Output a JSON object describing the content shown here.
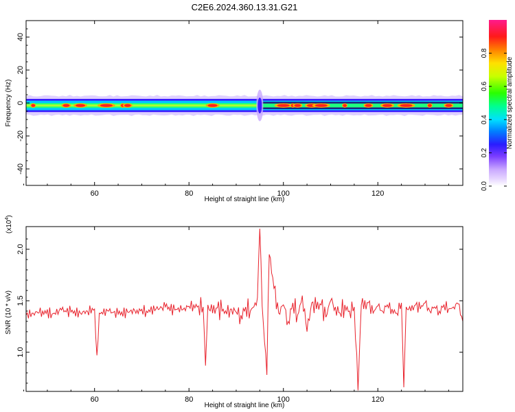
{
  "title": "C2E6.2024.360.13.31.G21",
  "colors": {
    "signal_line": "#e8202a",
    "axis": "#000000",
    "background": "#ffffff"
  },
  "chart_data": [
    {
      "type": "heatmap",
      "description_of_marks": "Spectrogram of a narrow band centered on 0 Hz versus height",
      "xlabel": "Height of straight line (km)",
      "ylabel": "Frequency (Hz)",
      "xlim": [
        45.5,
        138
      ],
      "ylim": [
        -50,
        50
      ],
      "xticks": [
        60,
        80,
        100,
        120
      ],
      "yticks": [
        -40,
        -20,
        0,
        20,
        40
      ],
      "colorbar": {
        "label": "Normalized spectral amplitude",
        "range": [
          0,
          1
        ],
        "ticks": [
          "0.0",
          "0.2",
          "0.4",
          "0.6",
          "0.8"
        ],
        "colormap": "rainbow"
      },
      "band": {
        "center_hz": -1.5,
        "core_halfwidth_hz": 1.5,
        "outer_halfwidth_hz": 4,
        "hot_spots_km": [
          47,
          54,
          57,
          62.5,
          66,
          67,
          85,
          100,
          102,
          103,
          106,
          108,
          113,
          118,
          122,
          126,
          131,
          135
        ]
      }
    },
    {
      "type": "line",
      "xlabel": "Height of straight line (km)",
      "ylabel": "SNR (10 * v/v)",
      "y_multiplier": "(x10",
      "y_multiplier_exp": "4",
      "y_multiplier_close": ")",
      "xlim": [
        45.5,
        138
      ],
      "ylim": [
        0.62,
        2.22
      ],
      "xticks": [
        60,
        80,
        100,
        120
      ],
      "yticks": [
        "1.0",
        "1.5",
        "2.0"
      ],
      "series": [
        {
          "x": [
            45.5,
            47,
            49,
            51,
            53,
            55,
            57,
            58.5,
            60,
            60.5,
            61,
            63,
            65,
            67,
            69,
            71,
            73,
            75,
            77,
            79,
            81,
            82,
            83,
            83.5,
            84,
            85,
            86,
            87,
            88,
            89,
            90,
            91,
            92,
            93,
            94,
            94.5,
            95,
            95.5,
            96,
            96.5,
            97,
            98,
            99,
            100,
            101,
            102,
            103,
            104,
            105,
            106,
            107,
            108,
            109,
            110,
            111,
            112,
            113,
            114,
            115,
            115.8,
            116.5,
            117,
            118,
            119,
            120,
            121,
            122,
            123,
            124,
            125,
            125.5,
            126,
            127,
            128,
            129,
            130,
            131,
            132,
            133,
            134,
            135,
            136,
            137,
            138
          ],
          "values": [
            1.36,
            1.38,
            1.4,
            1.37,
            1.41,
            1.39,
            1.38,
            1.4,
            1.42,
            0.97,
            1.38,
            1.4,
            1.37,
            1.39,
            1.41,
            1.4,
            1.42,
            1.44,
            1.41,
            1.43,
            1.46,
            1.45,
            1.44,
            0.87,
            1.46,
            1.38,
            1.43,
            1.4,
            1.37,
            1.42,
            1.39,
            1.36,
            1.44,
            1.4,
            1.48,
            1.53,
            2.2,
            1.45,
            1.1,
            0.78,
            1.95,
            1.62,
            1.38,
            1.46,
            1.3,
            1.48,
            1.36,
            1.55,
            1.2,
            1.48,
            1.42,
            1.46,
            1.34,
            1.5,
            1.44,
            1.38,
            1.46,
            1.4,
            1.44,
            0.63,
            1.46,
            1.42,
            1.48,
            1.38,
            1.45,
            1.4,
            1.46,
            1.42,
            1.38,
            1.48,
            0.66,
            1.44,
            1.4,
            1.46,
            1.42,
            1.48,
            1.4,
            1.44,
            1.4,
            1.46,
            1.42,
            1.44,
            1.47,
            1.3
          ]
        }
      ]
    }
  ]
}
